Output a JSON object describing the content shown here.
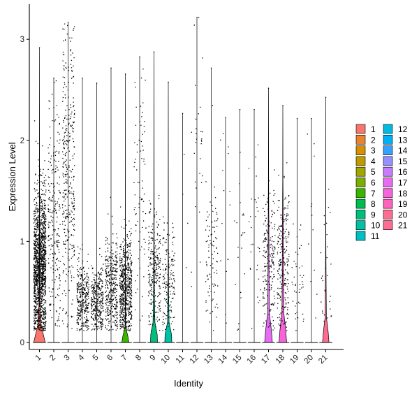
{
  "chart_data": {
    "type": "violin",
    "title": "",
    "xlabel": "Identity",
    "ylabel": "Expression Level",
    "ylim": [
      -0.12,
      3.3
    ],
    "yticks": [
      0,
      1,
      2,
      3
    ],
    "grid": false,
    "legend_position": "right",
    "categories": [
      "1",
      "2",
      "3",
      "4",
      "5",
      "6",
      "7",
      "8",
      "9",
      "10",
      "11",
      "12",
      "13",
      "14",
      "15",
      "16",
      "17",
      "18",
      "19",
      "20",
      "21"
    ],
    "series": [
      {
        "name": "1",
        "color": "#F8766D",
        "max": 2.92,
        "n_expressing": 1500,
        "center": 0.75,
        "spread": 0.38,
        "zero_width": 0.9,
        "violin": [
          [
            0.0,
            0.9
          ],
          [
            0.08,
            0.6
          ],
          [
            0.18,
            0.22
          ],
          [
            0.4,
            0.05
          ],
          [
            0.8,
            0.04
          ],
          [
            1.5,
            0.02
          ],
          [
            2.92,
            0.0
          ]
        ]
      },
      {
        "name": "2",
        "color": "#EA8331",
        "max": 2.62,
        "n_expressing": 230,
        "center": 1.2,
        "spread": 0.6,
        "zero_width": 0.0,
        "violin": []
      },
      {
        "name": "3",
        "color": "#D89000",
        "max": 3.17,
        "n_expressing": 360,
        "center": 1.6,
        "spread": 0.75,
        "zero_width": 0.0,
        "violin": []
      },
      {
        "name": "4",
        "color": "#C09B00",
        "max": 2.62,
        "n_expressing": 320,
        "center": 0.45,
        "spread": 0.2,
        "zero_width": 0.0,
        "violin": []
      },
      {
        "name": "5",
        "color": "#A3A500",
        "max": 2.57,
        "n_expressing": 330,
        "center": 0.4,
        "spread": 0.18,
        "zero_width": 0.0,
        "violin": []
      },
      {
        "name": "6",
        "color": "#7CAE00",
        "max": 2.72,
        "n_expressing": 360,
        "center": 0.55,
        "spread": 0.25,
        "zero_width": 0.0,
        "violin": []
      },
      {
        "name": "7",
        "color": "#39B600",
        "max": 2.66,
        "n_expressing": 620,
        "center": 0.55,
        "spread": 0.25,
        "zero_width": 0.55,
        "violin": [
          [
            0.0,
            0.55
          ],
          [
            0.06,
            0.4
          ],
          [
            0.15,
            0.05
          ],
          [
            0.4,
            0.02
          ],
          [
            2.66,
            0.0
          ]
        ]
      },
      {
        "name": "8",
        "color": "#00BB4E",
        "max": 2.83,
        "n_expressing": 80,
        "center": 1.5,
        "spread": 0.7,
        "zero_width": 0.0,
        "violin": []
      },
      {
        "name": "9",
        "color": "#00BF7D",
        "max": 2.88,
        "n_expressing": 260,
        "center": 0.7,
        "spread": 0.3,
        "zero_width": 0.55,
        "violin": [
          [
            0.0,
            0.55
          ],
          [
            0.08,
            0.5
          ],
          [
            0.2,
            0.15
          ],
          [
            0.5,
            0.06
          ],
          [
            1.0,
            0.03
          ],
          [
            2.88,
            0.0
          ]
        ]
      },
      {
        "name": "10",
        "color": "#00C1A3",
        "max": 2.58,
        "n_expressing": 170,
        "center": 0.6,
        "spread": 0.25,
        "zero_width": 0.55,
        "violin": [
          [
            0.0,
            0.55
          ],
          [
            0.08,
            0.5
          ],
          [
            0.2,
            0.12
          ],
          [
            0.5,
            0.05
          ],
          [
            0.9,
            0.02
          ],
          [
            2.58,
            0.0
          ]
        ]
      },
      {
        "name": "11",
        "color": "#00BFC4",
        "max": 2.27,
        "n_expressing": 4,
        "center": 1.3,
        "spread": 0.5,
        "zero_width": 0.0,
        "violin": []
      },
      {
        "name": "12",
        "color": "#00BAE0",
        "max": 3.22,
        "n_expressing": 30,
        "center": 1.8,
        "spread": 0.6,
        "zero_width": 0.0,
        "violin": []
      },
      {
        "name": "13",
        "color": "#00B0F6",
        "max": 2.72,
        "n_expressing": 95,
        "center": 0.85,
        "spread": 0.35,
        "zero_width": 0.0,
        "violin": []
      },
      {
        "name": "14",
        "color": "#35A2FF",
        "max": 2.23,
        "n_expressing": 15,
        "center": 1.2,
        "spread": 0.55,
        "zero_width": 0.0,
        "violin": []
      },
      {
        "name": "15",
        "color": "#9590FF",
        "max": 2.31,
        "n_expressing": 22,
        "center": 0.9,
        "spread": 0.5,
        "zero_width": 0.0,
        "violin": []
      },
      {
        "name": "16",
        "color": "#C77CFF",
        "max": 2.31,
        "n_expressing": 30,
        "center": 1.0,
        "spread": 0.55,
        "zero_width": 0.0,
        "violin": []
      },
      {
        "name": "17",
        "color": "#E76BF3",
        "max": 2.52,
        "n_expressing": 200,
        "center": 0.8,
        "spread": 0.35,
        "zero_width": 0.6,
        "violin": [
          [
            0.0,
            0.6
          ],
          [
            0.12,
            0.45
          ],
          [
            0.3,
            0.12
          ],
          [
            0.7,
            0.08
          ],
          [
            1.2,
            0.05
          ],
          [
            1.6,
            0.02
          ],
          [
            2.52,
            0.0
          ]
        ]
      },
      {
        "name": "18",
        "color": "#FA62DB",
        "max": 2.35,
        "n_expressing": 230,
        "center": 0.8,
        "spread": 0.35,
        "zero_width": 0.6,
        "violin": [
          [
            0.0,
            0.6
          ],
          [
            0.12,
            0.45
          ],
          [
            0.3,
            0.14
          ],
          [
            0.6,
            0.09
          ],
          [
            1.2,
            0.07
          ],
          [
            1.6,
            0.02
          ],
          [
            2.35,
            0.0
          ]
        ]
      },
      {
        "name": "19",
        "color": "#FF62BC",
        "max": 2.22,
        "n_expressing": 45,
        "center": 0.6,
        "spread": 0.3,
        "zero_width": 0.0,
        "violin": []
      },
      {
        "name": "20",
        "color": "#FF6C91",
        "max": 2.22,
        "n_expressing": 12,
        "center": 1.0,
        "spread": 0.6,
        "zero_width": 0.0,
        "violin": []
      },
      {
        "name": "21",
        "color": "#FF6C91",
        "max": 2.43,
        "n_expressing": 30,
        "center": 0.6,
        "spread": 0.4,
        "zero_width": 0.5,
        "violin": [
          [
            0.0,
            0.5
          ],
          [
            0.1,
            0.38
          ],
          [
            0.25,
            0.1
          ],
          [
            0.55,
            0.06
          ],
          [
            1.0,
            0.02
          ],
          [
            2.43,
            0.0
          ]
        ]
      }
    ]
  }
}
